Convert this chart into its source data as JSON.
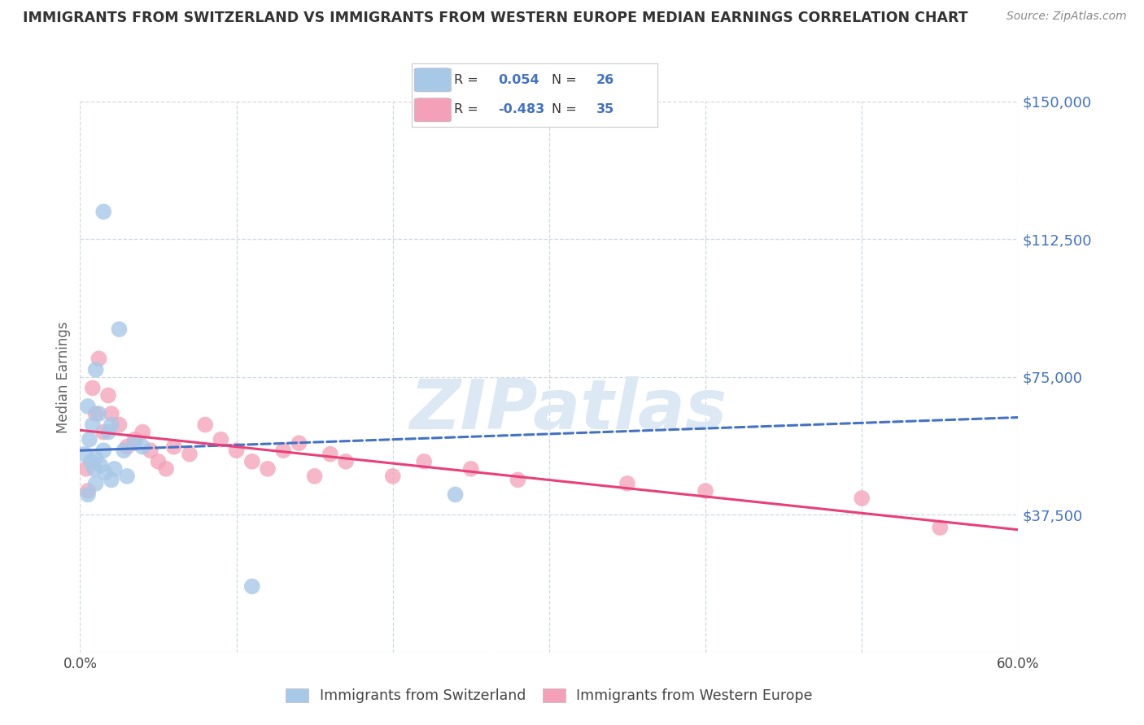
{
  "title": "IMMIGRANTS FROM SWITZERLAND VS IMMIGRANTS FROM WESTERN EUROPE MEDIAN EARNINGS CORRELATION CHART",
  "source": "Source: ZipAtlas.com",
  "ylabel": "Median Earnings",
  "yticks": [
    0,
    37500,
    75000,
    112500,
    150000
  ],
  "ytick_labels": [
    "",
    "$37,500",
    "$75,000",
    "$112,500",
    "$150,000"
  ],
  "xmin": 0.0,
  "xmax": 60.0,
  "ymin": 0,
  "ymax": 150000,
  "blue_R": 0.054,
  "blue_N": 26,
  "pink_R": -0.483,
  "pink_N": 35,
  "blue_label": "Immigrants from Switzerland",
  "pink_label": "Immigrants from Western Europe",
  "blue_color": "#a8c8e8",
  "pink_color": "#f4a0b8",
  "blue_line_color": "#4472c4",
  "pink_line_color": "#e8407a",
  "legend_R_color": "#4472c4",
  "title_color": "#333333",
  "source_color": "#888888",
  "ylabel_color": "#666666",
  "yticklabel_color": "#4472c4",
  "watermark_color": "#dce8f4",
  "blue_scatter_x": [
    0.3,
    0.5,
    0.5,
    0.6,
    0.7,
    0.8,
    0.9,
    1.0,
    1.0,
    1.0,
    1.2,
    1.3,
    1.5,
    1.5,
    1.6,
    1.8,
    2.0,
    2.0,
    2.2,
    2.5,
    2.8,
    3.0,
    3.5,
    4.0,
    11.0,
    24.0
  ],
  "blue_scatter_y": [
    54000,
    67000,
    43000,
    58000,
    52000,
    62000,
    50000,
    53000,
    77000,
    46000,
    65000,
    51000,
    120000,
    55000,
    49000,
    60000,
    62000,
    47000,
    50000,
    88000,
    55000,
    48000,
    57000,
    56000,
    18000,
    43000
  ],
  "pink_scatter_x": [
    0.4,
    0.5,
    0.8,
    1.0,
    1.2,
    1.5,
    1.8,
    2.0,
    2.5,
    3.0,
    3.5,
    4.0,
    4.5,
    5.0,
    5.5,
    6.0,
    7.0,
    8.0,
    9.0,
    10.0,
    11.0,
    12.0,
    13.0,
    14.0,
    15.0,
    16.0,
    17.0,
    20.0,
    22.0,
    25.0,
    28.0,
    35.0,
    40.0,
    50.0,
    55.0
  ],
  "pink_scatter_y": [
    50000,
    44000,
    72000,
    65000,
    80000,
    60000,
    70000,
    65000,
    62000,
    56000,
    58000,
    60000,
    55000,
    52000,
    50000,
    56000,
    54000,
    62000,
    58000,
    55000,
    52000,
    50000,
    55000,
    57000,
    48000,
    54000,
    52000,
    48000,
    52000,
    50000,
    47000,
    46000,
    44000,
    42000,
    34000
  ],
  "grid_color": "#d0d8e0",
  "background_color": "#ffffff"
}
